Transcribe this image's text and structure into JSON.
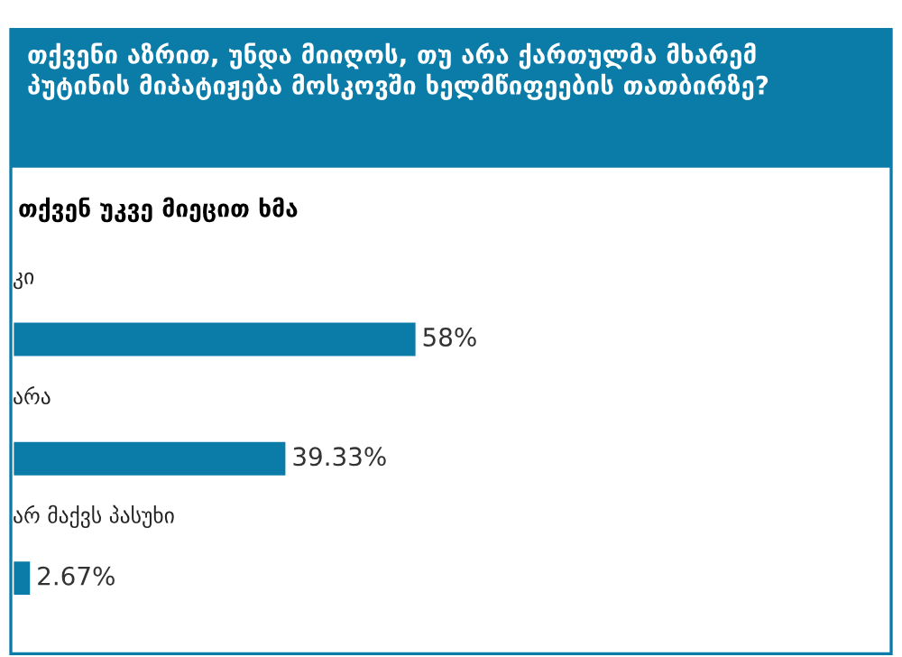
{
  "chart_data": {
    "type": "bar",
    "orientation": "horizontal",
    "title": "თქვენი აზრით, უნდა მიიღოს, თუ არა ქართულმა მხარემ პუტინის მიპატიჟება მოსკოვში ხელმწიფეების თათბირზე?",
    "subtitle": "თქვენ უკვე მიეცით ხმა",
    "categories": [
      "კი",
      "არა",
      "არ მაქვს პასუხი"
    ],
    "values": [
      58,
      39.33,
      2.67
    ],
    "value_labels": [
      "58%",
      "39.33%",
      "2.67%"
    ],
    "color": "#0b7ca8",
    "data_labels": false
  }
}
